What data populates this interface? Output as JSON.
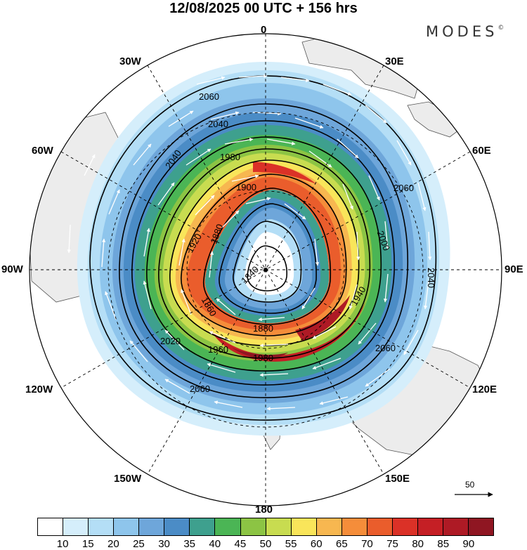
{
  "header": {
    "title": "12/08/2025  00 UTC  + 156 hrs",
    "brand": "MODES"
  },
  "map": {
    "longitude_labels": {
      "top": "0",
      "bottom": "180",
      "left": "90W",
      "right": "90E",
      "nw30": "30W",
      "ne30": "30E",
      "nw60": "60W",
      "ne60": "60E",
      "sw120": "120W",
      "se120": "120E",
      "sw150": "150W",
      "se150": "150E"
    },
    "contour_labels": [
      "2060",
      "2040",
      "1980",
      "1900",
      "1880",
      "1840",
      "1860",
      "1920",
      "1960",
      "2020",
      "2000",
      "1940"
    ]
  },
  "legend": {
    "wind_vector_reference": "50",
    "colorbar": {
      "colors": [
        "#ffffff",
        "#d5eefb",
        "#b4def6",
        "#8ec5ec",
        "#6ea6da",
        "#4b8cc6",
        "#3ea08e",
        "#4bb555",
        "#8cc444",
        "#c8dc50",
        "#f9e55a",
        "#f7b750",
        "#f58d3a",
        "#ea5d2c",
        "#db3127",
        "#c51f25",
        "#ae1a25",
        "#8f1622"
      ],
      "ticks": [
        "10",
        "15",
        "20",
        "25",
        "30",
        "35",
        "40",
        "45",
        "50",
        "55",
        "60",
        "65",
        "70",
        "75",
        "80",
        "85",
        "90"
      ]
    }
  }
}
